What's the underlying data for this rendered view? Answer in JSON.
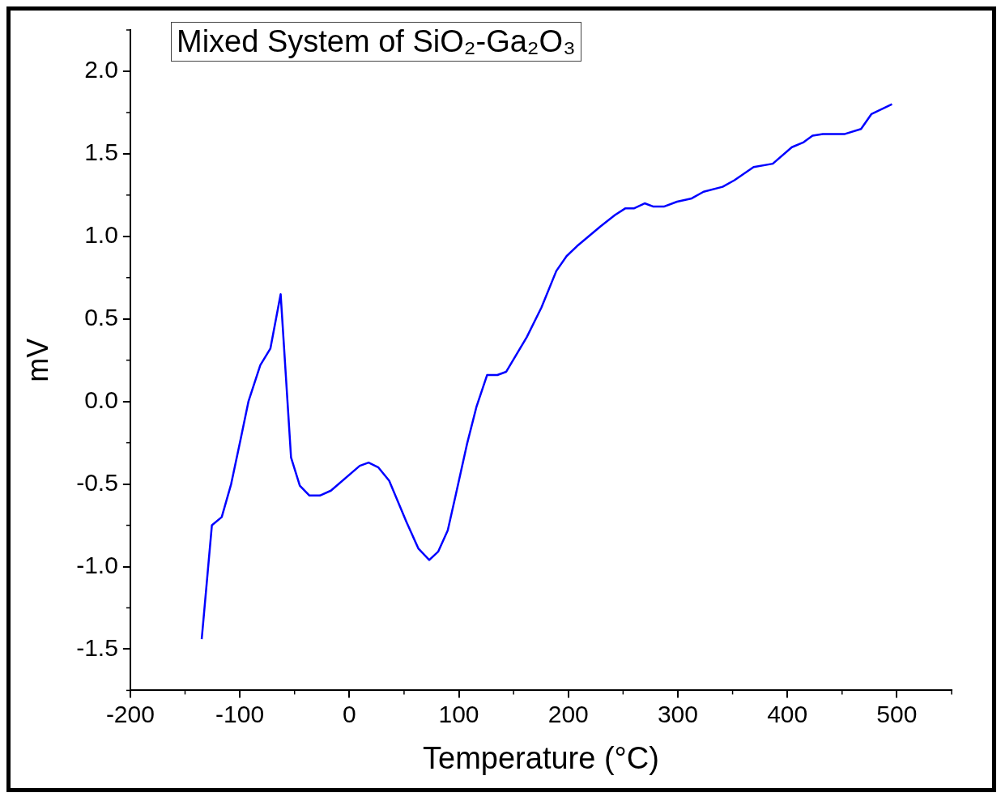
{
  "chart_data": {
    "type": "line",
    "title": "Mixed System of SiO₂-Ga₂O₃",
    "xlabel": "Temperature (°C)",
    "ylabel": "mV",
    "xlim": [
      -200,
      550
    ],
    "xticks": [
      -200,
      -100,
      0,
      100,
      200,
      300,
      400,
      500
    ],
    "ylim": [
      -1.75,
      2.25
    ],
    "yticks": [
      -1.5,
      {
        "value": -1,
        "label": "-1.0"
      },
      -0.5,
      {
        "value": 0,
        "label": "0.0"
      },
      0.5,
      {
        "value": 1,
        "label": "1.0"
      },
      1.5,
      {
        "value": 2,
        "label": "2.0"
      }
    ],
    "grid": false,
    "legend": false,
    "marker": "none",
    "line_style": "solid",
    "series": [
      {
        "color": "#0000ff",
        "x": [
          -134.8,
          -125.5,
          -116.5,
          -107.9,
          -99.6,
          -92.1,
          -81.3,
          -72.1,
          -62.7,
          -53.2,
          -45.2,
          -36.4,
          -26.9,
          -16.8,
          9.5,
          17.6,
          26.6,
          36.4,
          52.2,
          63.0,
          73.0,
          81.1,
          89.9,
          97.4,
          107.4,
          116.2,
          125.8,
          135.2,
          143.3,
          162.1,
          175.5,
          189.0,
          198.4,
          207.8,
          229.4,
          242.8,
          252.2,
          260.2,
          269.7,
          277.8,
          287.2,
          299.3,
          312.7,
          323.5,
          340.9,
          351.7,
          369.2,
          386.7,
          404.1,
          414.9,
          423.0,
          432.4,
          439.1,
          452.6,
          467.3,
          476.7,
          495.6
        ],
        "values": [
          -1.44,
          -0.75,
          -0.7,
          -0.5,
          -0.24,
          0.0,
          0.22,
          0.32,
          0.65,
          -0.34,
          -0.51,
          -0.57,
          -0.57,
          -0.54,
          -0.39,
          -0.37,
          -0.4,
          -0.48,
          -0.73,
          -0.89,
          -0.96,
          -0.91,
          -0.78,
          -0.56,
          -0.26,
          -0.03,
          0.16,
          0.16,
          0.18,
          0.39,
          0.57,
          0.79,
          0.88,
          0.94,
          1.06,
          1.13,
          1.17,
          1.17,
          1.2,
          1.18,
          1.18,
          1.21,
          1.23,
          1.27,
          1.3,
          1.34,
          1.42,
          1.44,
          1.54,
          1.57,
          1.61,
          1.62,
          1.62,
          1.62,
          1.65,
          1.74,
          1.8
        ]
      }
    ]
  }
}
